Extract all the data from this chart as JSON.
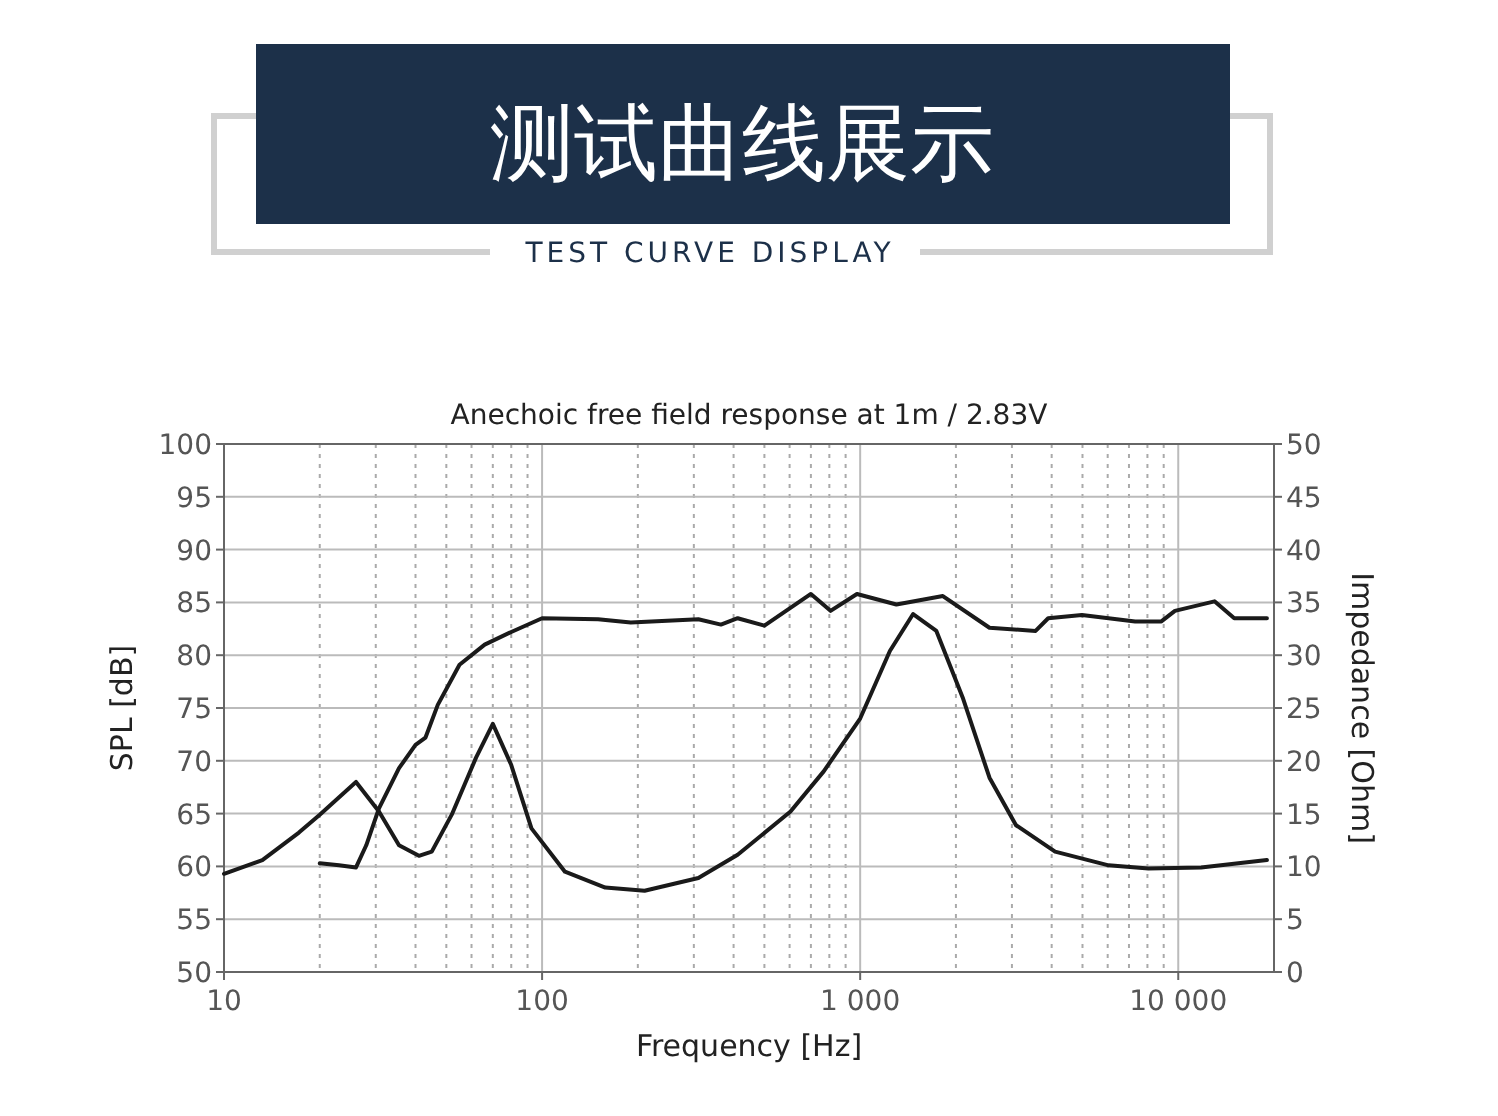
{
  "chart_data": {
    "type": "line",
    "title": "测试曲线展示",
    "subtitle": "TEST CURVE DISPLAY",
    "annotations": [
      "Anechoic free field response at 1m / 2.83V"
    ],
    "xlabel": "Frequency [Hz]",
    "ylabel": "SPL [dB]",
    "y2label": "Impedance [Ohm]",
    "log": "x",
    "grid": true,
    "xlim": [
      10,
      20000
    ],
    "xticks": [
      10,
      100,
      {
        "value": 1000,
        "label": "1 000"
      },
      {
        "value": 10000,
        "label": "10 000"
      }
    ],
    "ylim": [
      50,
      100
    ],
    "yticks": [
      50,
      55,
      60,
      65,
      70,
      75,
      80,
      85,
      90,
      95,
      100
    ],
    "y2lim": [
      0,
      50
    ],
    "y2ticks": [
      0,
      5,
      10,
      15,
      20,
      25,
      30,
      35,
      40,
      45,
      50
    ],
    "series": [
      {
        "color": "#1a1a1a",
        "x": [
          20,
          23,
          26,
          28,
          30.7,
          35.5,
          40,
          43,
          47,
          55,
          66,
          80,
          100,
          150,
          190,
          310,
          365,
          412,
          500,
          700,
          807,
          977,
          1300,
          1820,
          2550,
          3560,
          3900,
          4980,
          7320,
          8850,
          9760,
          13000,
          15000,
          19000
        ],
        "values": [
          60.3,
          60.1,
          59.9,
          62,
          65.5,
          69.3,
          71.5,
          72.2,
          75.3,
          79.1,
          81,
          82.2,
          83.5,
          83.4,
          83.1,
          83.4,
          82.9,
          83.5,
          82.8,
          85.8,
          84.2,
          85.8,
          84.8,
          85.6,
          82.6,
          82.3,
          83.5,
          83.8,
          83.2,
          83.2,
          84.2,
          85.1,
          83.5,
          83.5
        ]
      },
      {
        "color": "#1a1a1a",
        "axis": "y2",
        "x": [
          10,
          13.2,
          17.2,
          20,
          26,
          30.7,
          35.5,
          41,
          45,
          52,
          62,
          70,
          80,
          92.6,
          118,
          158,
          210,
          310,
          412,
          604,
          768,
          1000,
          1240,
          1467,
          1736,
          2100,
          2550,
          3090,
          4100,
          6040,
          8060,
          11800,
          19000
        ],
        "values": [
          9.3,
          10.6,
          13.2,
          14.9,
          18,
          15.2,
          12,
          11,
          11.4,
          14.9,
          20.3,
          23.5,
          19.6,
          13.6,
          9.5,
          8,
          7.7,
          8.9,
          11.1,
          15.2,
          19,
          24,
          30.4,
          33.9,
          32.3,
          26,
          18.4,
          13.9,
          11.4,
          10.1,
          9.8,
          9.9,
          10.6
        ]
      }
    ]
  }
}
